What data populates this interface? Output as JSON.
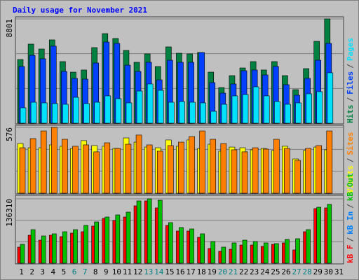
{
  "title": "Daily usage for November 2021",
  "chart_data": [
    {
      "type": "bar",
      "separator": "/",
      "ylim": [
        0,
        8801
      ],
      "yticks": [
        8801
      ],
      "ygrid": [
        2934,
        5867
      ],
      "series": [
        {
          "name": "Hits",
          "color": "#008040",
          "values": [
            5375,
            6675,
            6260,
            7030,
            5200,
            4310,
            4490,
            6380,
            7560,
            7150,
            6140,
            5140,
            5850,
            4785,
            6440,
            5905,
            5850,
            5965,
            4310,
            3010,
            4015,
            4665,
            5200,
            4490,
            5200,
            4015,
            2835,
            4605,
            6910,
            8801,
            null
          ]
        },
        {
          "name": "Files",
          "color": "#0040ff",
          "values": [
            4785,
            5730,
            5435,
            6500,
            4370,
            3780,
            3720,
            5080,
            6850,
            6735,
            4900,
            4370,
            5140,
            3660,
            5315,
            5140,
            5140,
            5965,
            3425,
            2540,
            3310,
            4430,
            4490,
            4075,
            4785,
            3250,
            2360,
            3780,
            5315,
            6735,
            null
          ]
        },
        {
          "name": "Pages",
          "color": "#00e0ff",
          "values": [
            1300,
            1770,
            1715,
            1655,
            1595,
            2185,
            1655,
            1770,
            2305,
            2070,
            1715,
            2715,
            3310,
            2775,
            1770,
            1830,
            1770,
            1715,
            1005,
            1595,
            2305,
            2420,
            3070,
            2305,
            1830,
            1595,
            1715,
            2480,
            2660,
            4255,
            null
          ]
        }
      ]
    },
    {
      "type": "bar",
      "separator": "/",
      "ylim": [
        0,
        576
      ],
      "yticks": [
        576
      ],
      "ygrid": [
        192,
        384
      ],
      "series": [
        {
          "name": "Visits",
          "color": "#ffff00",
          "values": [
            435,
            398,
            398,
            423,
            411,
            392,
            460,
            417,
            411,
            392,
            484,
            447,
            404,
            398,
            466,
            411,
            466,
            392,
            429,
            368,
            404,
            398,
            380,
            392,
            374,
            411,
            300,
            374,
            404,
            380,
            null
          ]
        },
        {
          "name": "Sites",
          "color": "#ff8000",
          "values": [
            398,
            478,
            545,
            576,
            472,
            411,
            423,
            362,
            441,
            392,
            429,
            509,
            423,
            368,
            417,
            447,
            496,
            545,
            472,
            435,
            380,
            362,
            398,
            386,
            472,
            392,
            288,
            392,
            417,
            545,
            null
          ]
        }
      ]
    },
    {
      "type": "bar",
      "separator": "/",
      "ylim": [
        0,
        136310
      ],
      "yticks": [
        136310
      ],
      "ygrid": [
        45437,
        90873
      ],
      "categories": [
        "1",
        "2",
        "3",
        "4",
        "5",
        "6",
        "7",
        "8",
        "9",
        "10",
        "11",
        "12",
        "13",
        "14",
        "15",
        "16",
        "17",
        "18",
        "19",
        "20",
        "21",
        "22",
        "23",
        "24",
        "25",
        "26",
        "27",
        "28",
        "29",
        "30",
        "31"
      ],
      "category_colors": [
        "#000000",
        "#000000",
        "#000000",
        "#000000",
        "#000000",
        "#008080",
        "#008080",
        "#000000",
        "#000000",
        "#000000",
        "#000000",
        "#000000",
        "#008080",
        "#008080",
        "#000000",
        "#000000",
        "#000000",
        "#000000",
        "#000000",
        "#008080",
        "#008080",
        "#000000",
        "#000000",
        "#000000",
        "#000000",
        "#000000",
        "#008080",
        "#008080",
        "#000000",
        "#000000",
        "#000000"
      ],
      "series": [
        {
          "name": "kB F",
          "color": "#ff0000",
          "values": [
            34077,
            59264,
            48893,
            59264,
            56301,
            63709,
            66672,
            78525,
            94822,
            90378,
            97786,
            121491,
            131862,
            117046,
            80006,
            68154,
            68154,
            54819,
            31114,
            25187,
            29632,
            38522,
            38522,
            35558,
            40003,
            42966,
            28150,
            66672,
            115565,
            117046,
            null
          ]
        },
        {
          "name": "kB In",
          "color": "#0080ff",
          "values": [
            0,
            0,
            0,
            0,
            0,
            0,
            0,
            0,
            0,
            0,
            0,
            0,
            0,
            0,
            0,
            0,
            0,
            0,
            0,
            0,
            0,
            0,
            0,
            0,
            0,
            0,
            0,
            0,
            0,
            0,
            null
          ]
        },
        {
          "name": "kB Out",
          "color": "#00c000",
          "values": [
            40003,
            71117,
            57782,
            62227,
            66672,
            71117,
            80006,
            87414,
            97786,
            102230,
            108157,
            131862,
            136310,
            133344,
            85933,
            75562,
            72598,
            62227,
            45930,
            34077,
            42966,
            48893,
            45930,
            42966,
            41485,
            50374,
            51856,
            71117,
            118528,
            124454,
            null
          ]
        }
      ]
    }
  ]
}
